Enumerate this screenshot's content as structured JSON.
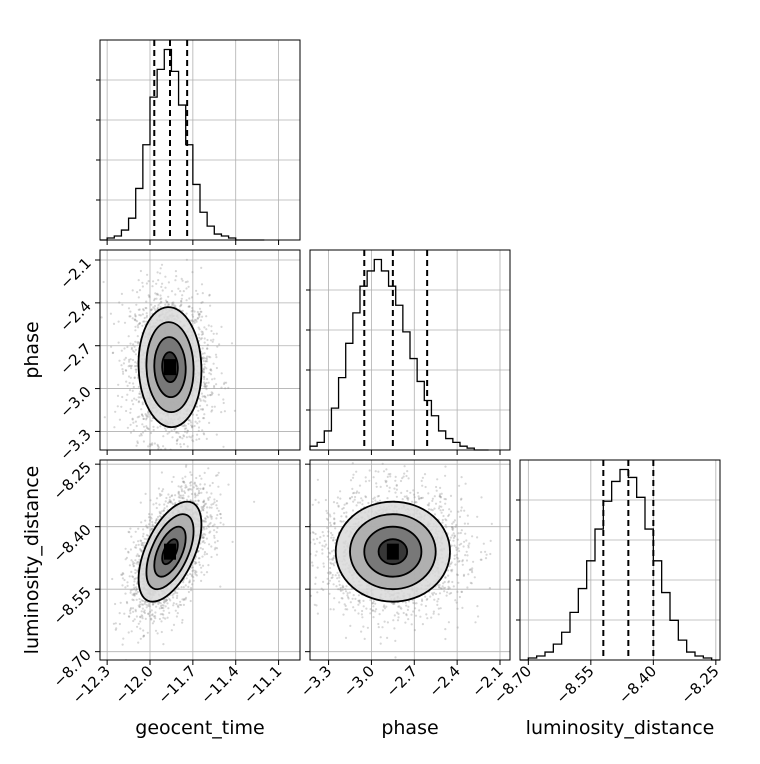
{
  "chart_data": {
    "type": "corner",
    "parameters": [
      {
        "name": "geocent_time",
        "range": [
          -12.35,
          -10.95
        ],
        "ticks": [
          -12.3,
          -12.0,
          -11.7,
          -11.4,
          -11.1
        ],
        "tick_labels": [
          "−12.3",
          "−12.0",
          "−11.7",
          "−11.4",
          "−11.1"
        ],
        "quantiles": [
          -11.97,
          -11.86,
          -11.74
        ]
      },
      {
        "name": "phase",
        "range": [
          -3.43,
          -2.03
        ],
        "ticks": [
          -3.3,
          -3.0,
          -2.7,
          -2.4,
          -2.1
        ],
        "tick_labels": [
          "−3.3",
          "−3.0",
          "−2.7",
          "−2.4",
          "−2.1"
        ],
        "quantiles": [
          -3.05,
          -2.85,
          -2.61
        ]
      },
      {
        "name": "luminosity_distance",
        "range": [
          -8.72,
          -8.24
        ],
        "ticks": [
          -8.7,
          -8.55,
          -8.4,
          -8.25
        ],
        "tick_labels": [
          "−8.70",
          "−8.55",
          "−8.40",
          "−8.25"
        ],
        "quantiles": [
          -8.52,
          -8.46,
          -8.4
        ]
      }
    ],
    "histograms": [
      {
        "parameter": "geocent_time",
        "bin_edges": [
          -12.35,
          -12.3,
          -12.25,
          -12.2,
          -12.15,
          -12.1,
          -12.05,
          -12.0,
          -11.95,
          -11.9,
          -11.85,
          -11.8,
          -11.75,
          -11.7,
          -11.65,
          -11.6,
          -11.55,
          -11.5,
          -11.45,
          -11.4,
          -11.35,
          -11.3,
          -11.25,
          -11.2
        ],
        "counts": [
          0,
          1,
          2,
          5,
          11,
          26,
          48,
          72,
          86,
          96,
          85,
          68,
          48,
          28,
          14,
          7,
          3,
          2,
          1,
          0,
          0,
          0,
          0
        ]
      },
      {
        "parameter": "phase",
        "bin_edges": [
          -3.43,
          -3.38,
          -3.33,
          -3.28,
          -3.23,
          -3.18,
          -3.13,
          -3.08,
          -3.03,
          -2.98,
          -2.93,
          -2.88,
          -2.83,
          -2.78,
          -2.73,
          -2.68,
          -2.63,
          -2.58,
          -2.53,
          -2.48,
          -2.43,
          -2.38,
          -2.33,
          -2.28,
          -2.23,
          -2.18
        ],
        "counts": [
          2,
          4,
          10,
          22,
          38,
          56,
          72,
          86,
          94,
          100,
          94,
          86,
          76,
          62,
          48,
          36,
          26,
          18,
          10,
          6,
          4,
          2,
          1,
          0,
          0
        ]
      },
      {
        "parameter": "luminosity_distance",
        "bin_edges": [
          -8.72,
          -8.7,
          -8.68,
          -8.66,
          -8.64,
          -8.62,
          -8.6,
          -8.58,
          -8.56,
          -8.54,
          -8.52,
          -8.5,
          -8.48,
          -8.46,
          -8.44,
          -8.42,
          -8.4,
          -8.38,
          -8.36,
          -8.34,
          -8.32,
          -8.3,
          -8.28,
          -8.26,
          -8.24
        ],
        "counts": [
          0,
          1,
          2,
          4,
          8,
          14,
          24,
          36,
          50,
          66,
          80,
          90,
          96,
          92,
          82,
          66,
          50,
          34,
          20,
          10,
          4,
          2,
          1,
          0
        ]
      }
    ],
    "joint_2d": [
      {
        "x": "geocent_time",
        "y": "phase",
        "mean": [
          -11.86,
          -2.85
        ],
        "sd": [
          0.11,
          0.21
        ],
        "corr": -0.05,
        "contour_levels_sigma": [
          0.5,
          1.0,
          1.5,
          2.0
        ]
      },
      {
        "x": "geocent_time",
        "y": "luminosity_distance",
        "mean": [
          -11.86,
          -8.46
        ],
        "sd": [
          0.11,
          0.06
        ],
        "corr": 0.55,
        "contour_levels_sigma": [
          0.5,
          1.0,
          1.5,
          2.0
        ]
      },
      {
        "x": "phase",
        "y": "luminosity_distance",
        "mean": [
          -2.85,
          -8.46
        ],
        "sd": [
          0.2,
          0.06
        ],
        "corr": 0.0,
        "contour_levels_sigma": [
          0.5,
          1.0,
          1.5,
          2.0
        ]
      }
    ],
    "grid": true,
    "colors": {
      "line": "#000000",
      "points": "#8c8c8c",
      "grid": "#b0b0b0",
      "density_dark": "#000000",
      "density_light": "#e6e6e6"
    }
  }
}
